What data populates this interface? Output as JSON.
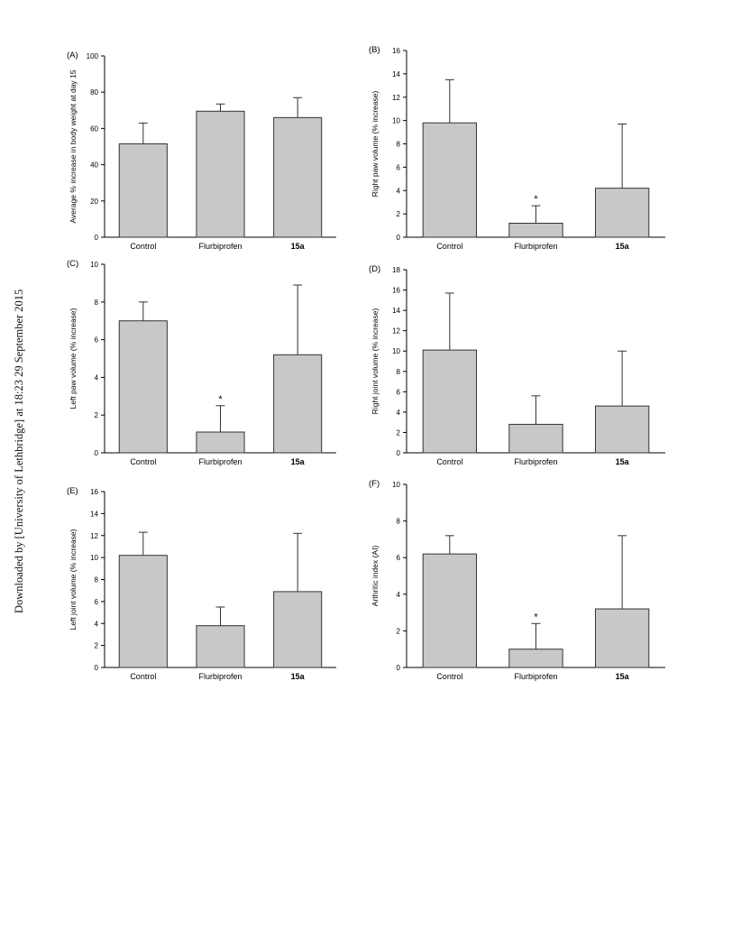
{
  "watermark": "Downloaded by [University of Lethbridge] at 18:23 29 September 2015",
  "chart_data": [
    {
      "type": "bar",
      "panel_label": "(A)",
      "ylabel": "Average % increase in body weight at day 15",
      "categories": [
        "Control",
        "Flurbiprofen",
        "15a"
      ],
      "bold_categories": [
        "15a"
      ],
      "values": [
        51.5,
        69.5,
        66
      ],
      "errors": [
        11.5,
        4,
        11
      ],
      "significant": [
        false,
        false,
        false
      ],
      "ylim": [
        0,
        100
      ],
      "yticks": [
        0,
        20,
        40,
        60,
        80,
        100
      ],
      "grid": false
    },
    {
      "type": "bar",
      "panel_label": "(B)",
      "ylabel": "Right paw volume (% increase)",
      "categories": [
        "Control",
        "Flurbiprofen",
        "15a"
      ],
      "bold_categories": [
        "15a"
      ],
      "values": [
        9.8,
        1.2,
        4.2
      ],
      "errors": [
        3.7,
        1.5,
        5.5
      ],
      "significant": [
        false,
        true,
        false
      ],
      "ylim": [
        0,
        16
      ],
      "yticks": [
        0,
        2,
        4,
        6,
        8,
        10,
        12,
        14,
        16
      ],
      "grid": false
    },
    {
      "type": "bar",
      "panel_label": "(C)",
      "ylabel": "Left paw volume (% increase)",
      "categories": [
        "Control",
        "Flurbiprofen",
        "15a"
      ],
      "bold_categories": [
        "15a"
      ],
      "values": [
        7.0,
        1.1,
        5.2
      ],
      "errors": [
        1.0,
        1.4,
        3.7
      ],
      "significant": [
        false,
        true,
        false
      ],
      "ylim": [
        0,
        10
      ],
      "yticks": [
        0,
        2,
        4,
        6,
        8,
        10
      ],
      "grid": false
    },
    {
      "type": "bar",
      "panel_label": "(D)",
      "ylabel": "Right joint volume (% increase)",
      "categories": [
        "Control",
        "Flurbiprofen",
        "15a"
      ],
      "bold_categories": [
        "15a"
      ],
      "values": [
        10.1,
        2.8,
        4.6
      ],
      "errors": [
        5.6,
        2.8,
        5.4
      ],
      "significant": [
        false,
        false,
        false
      ],
      "ylim": [
        0,
        18
      ],
      "yticks": [
        0,
        2,
        4,
        6,
        8,
        10,
        12,
        14,
        16,
        18
      ],
      "grid": false
    },
    {
      "type": "bar",
      "panel_label": "(E)",
      "ylabel": "Left joint volume (% increase)",
      "categories": [
        "Control",
        "Flurbiprofen",
        "15a"
      ],
      "bold_categories": [
        "15a"
      ],
      "values": [
        10.2,
        3.8,
        6.9
      ],
      "errors": [
        2.1,
        1.7,
        5.3
      ],
      "significant": [
        false,
        false,
        false
      ],
      "ylim": [
        0,
        16
      ],
      "yticks": [
        0,
        2,
        4,
        6,
        8,
        10,
        12,
        14,
        16
      ],
      "grid": false
    },
    {
      "type": "bar",
      "panel_label": "(F)",
      "ylabel": "Arthritic index (AI)",
      "categories": [
        "Control",
        "Flurbiprofen",
        "15a"
      ],
      "bold_categories": [
        "15a"
      ],
      "values": [
        6.2,
        1.0,
        3.2
      ],
      "errors": [
        1.0,
        1.4,
        4.0
      ],
      "significant": [
        false,
        true,
        false
      ],
      "ylim": [
        0,
        10
      ],
      "yticks": [
        0,
        2,
        4,
        6,
        8,
        10
      ],
      "grid": false
    }
  ],
  "colors": {
    "bar_fill": "#c8c8c8",
    "bar_stroke": "#333333",
    "axis": "#000000"
  },
  "significance_marker": "*"
}
